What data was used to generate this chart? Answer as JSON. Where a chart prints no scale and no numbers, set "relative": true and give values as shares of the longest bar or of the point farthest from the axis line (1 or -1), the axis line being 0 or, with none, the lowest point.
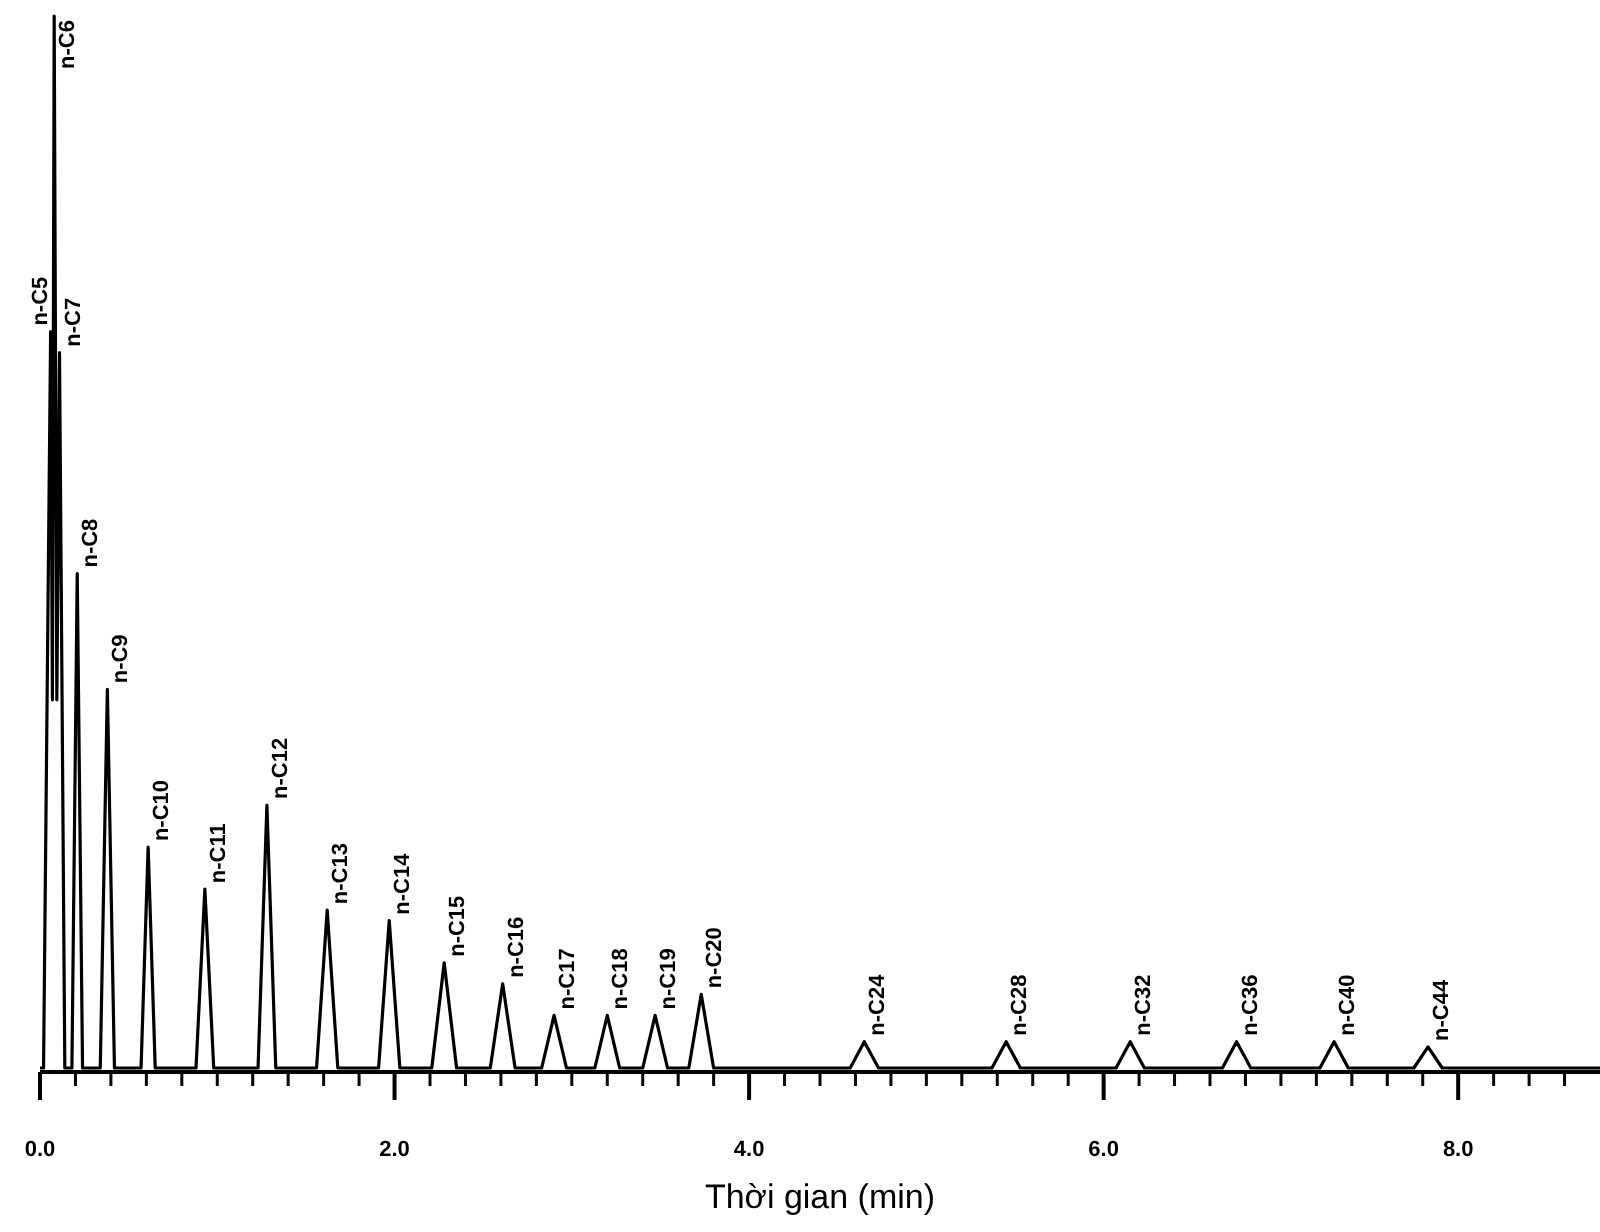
{
  "chart_data": {
    "type": "line",
    "relative": true,
    "xlabel": "Thời gian (min)",
    "xlim": [
      0,
      8.8
    ],
    "xticks": [
      {
        "value": 0,
        "label": "0.0"
      },
      {
        "value": 0.2,
        "label": null
      },
      {
        "value": 0.4,
        "label": null
      },
      {
        "value": 0.6,
        "label": null
      },
      {
        "value": 0.8,
        "label": null
      },
      {
        "value": 1.0,
        "label": null
      },
      {
        "value": 1.2,
        "label": null
      },
      {
        "value": 1.4,
        "label": null
      },
      {
        "value": 1.6,
        "label": null
      },
      {
        "value": 1.8,
        "label": null
      },
      {
        "value": 2,
        "label": "2.0"
      },
      {
        "value": 2.2,
        "label": null
      },
      {
        "value": 2.4,
        "label": null
      },
      {
        "value": 2.6,
        "label": null
      },
      {
        "value": 2.8,
        "label": null
      },
      {
        "value": 3.0,
        "label": null
      },
      {
        "value": 3.2,
        "label": null
      },
      {
        "value": 3.4,
        "label": null
      },
      {
        "value": 3.6,
        "label": null
      },
      {
        "value": 3.8,
        "label": null
      },
      {
        "value": 4,
        "label": "4.0"
      },
      {
        "value": 4.2,
        "label": null
      },
      {
        "value": 4.4,
        "label": null
      },
      {
        "value": 4.6,
        "label": null
      },
      {
        "value": 4.8,
        "label": null
      },
      {
        "value": 5.0,
        "label": null
      },
      {
        "value": 5.2,
        "label": null
      },
      {
        "value": 5.4,
        "label": null
      },
      {
        "value": 5.6,
        "label": null
      },
      {
        "value": 5.8,
        "label": null
      },
      {
        "value": 6,
        "label": "6.0"
      },
      {
        "value": 6.2,
        "label": null
      },
      {
        "value": 6.4,
        "label": null
      },
      {
        "value": 6.6,
        "label": null
      },
      {
        "value": 6.8,
        "label": null
      },
      {
        "value": 7.0,
        "label": null
      },
      {
        "value": 7.2,
        "label": null
      },
      {
        "value": 7.4,
        "label": null
      },
      {
        "value": 7.6,
        "label": null
      },
      {
        "value": 7.8,
        "label": null
      },
      {
        "value": 8,
        "label": "8.0"
      },
      {
        "value": 8.2,
        "label": null
      },
      {
        "value": 8.4,
        "label": null
      },
      {
        "value": 8.6,
        "label": null
      }
    ],
    "x": [
      0,
      0.02,
      0.06,
      0.07,
      0.08,
      0.095,
      0.11,
      0.14,
      0.18,
      0.21,
      0.24,
      0.34,
      0.38,
      0.42,
      0.57,
      0.61,
      0.65,
      0.88,
      0.93,
      0.98,
      1.23,
      1.28,
      1.33,
      1.56,
      1.62,
      1.68,
      1.91,
      1.97,
      2.03,
      2.21,
      2.28,
      2.35,
      2.54,
      2.61,
      2.68,
      2.83,
      2.9,
      2.97,
      3.13,
      3.2,
      3.27,
      3.4,
      3.47,
      3.54,
      3.66,
      3.73,
      3.8,
      4.57,
      4.65,
      4.73,
      5.37,
      5.45,
      5.53,
      6.07,
      6.15,
      6.23,
      6.67,
      6.75,
      6.83,
      7.22,
      7.3,
      7.38,
      7.75,
      7.83,
      7.91,
      8.8
    ],
    "series": [
      {
        "color": "#000000",
        "values": [
          0,
          0,
          0.7,
          0.35,
          1,
          0.35,
          0.68,
          0,
          0,
          0.47,
          0,
          0,
          0.36,
          0,
          0,
          0.21,
          0,
          0,
          0.17,
          0,
          0,
          0.25,
          0,
          0,
          0.15,
          0,
          0,
          0.14,
          0,
          0,
          0.1,
          0,
          0,
          0.08,
          0,
          0,
          0.05,
          0,
          0,
          0.05,
          0,
          0,
          0.05,
          0,
          0,
          0.07,
          0,
          0,
          0.025,
          0,
          0,
          0.025,
          0,
          0,
          0.025,
          0,
          0,
          0.025,
          0,
          0,
          0.025,
          0,
          0,
          0.02,
          0,
          0
        ]
      }
    ],
    "annotations": [
      {
        "text": "n-C5",
        "x": 0.06,
        "y": 0.7
      },
      {
        "text": "n-C6",
        "x": 0.08,
        "y": 1
      },
      {
        "text": "n-C7",
        "x": 0.11,
        "y": 0.68
      },
      {
        "text": "n-C8",
        "x": 0.21,
        "y": 0.47
      },
      {
        "text": "n-C9",
        "x": 0.38,
        "y": 0.36
      },
      {
        "text": "n-C10",
        "x": 0.61,
        "y": 0.21
      },
      {
        "text": "n-C11",
        "x": 0.93,
        "y": 0.17
      },
      {
        "text": "n-C12",
        "x": 1.28,
        "y": 0.25
      },
      {
        "text": "n-C13",
        "x": 1.62,
        "y": 0.15
      },
      {
        "text": "n-C14",
        "x": 1.97,
        "y": 0.14
      },
      {
        "text": "n-C15",
        "x": 2.28,
        "y": 0.1
      },
      {
        "text": "n-C16",
        "x": 2.61,
        "y": 0.08
      },
      {
        "text": "n-C17",
        "x": 2.9,
        "y": 0.05
      },
      {
        "text": "n-C18",
        "x": 3.2,
        "y": 0.05
      },
      {
        "text": "n-C19",
        "x": 3.47,
        "y": 0.05
      },
      {
        "text": "n-C20",
        "x": 3.73,
        "y": 0.07
      },
      {
        "text": "n-C24",
        "x": 4.65,
        "y": 0.025
      },
      {
        "text": "n-C28",
        "x": 5.45,
        "y": 0.025
      },
      {
        "text": "n-C32",
        "x": 6.15,
        "y": 0.025
      },
      {
        "text": "n-C36",
        "x": 6.75,
        "y": 0.025
      },
      {
        "text": "n-C40",
        "x": 7.3,
        "y": 0.025
      },
      {
        "text": "n-C44",
        "x": 7.83,
        "y": 0.02
      }
    ]
  }
}
